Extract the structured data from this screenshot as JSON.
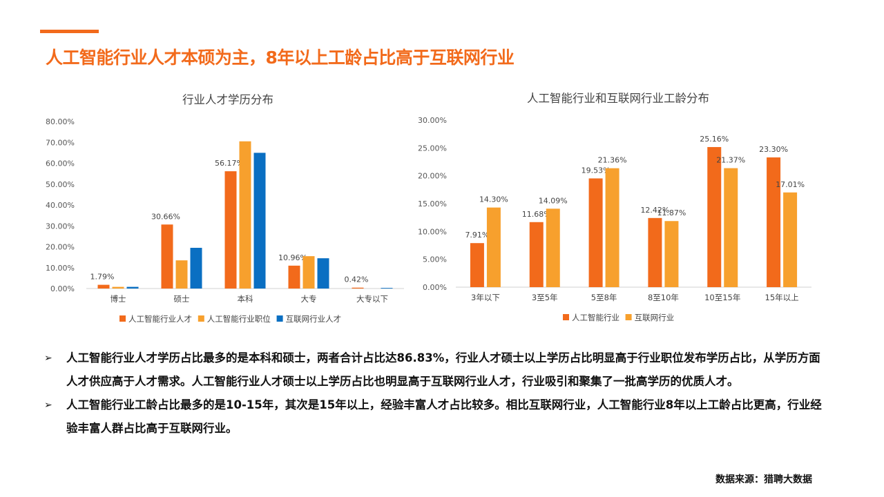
{
  "page": {
    "title": "人工智能行业人才本硕为主，8年以上工龄占比高于互联网行业",
    "source": "数据来源：猎聘大数据",
    "bullets": [
      "人工智能行业人才学历占比最多的是本科和硕士，两者合计占比达86.83%，行业人才硕士以上学历占比明显高于行业职位发布学历占比，从学历方面人才供应高于人才需求。人工智能行业人才硕士以上学历占比也明显高于互联网行业人才，行业吸引和聚集了一批高学历的优质人才。",
      "人工智能行业工龄占比最多的是10-15年，其次是15年以上，经验丰富人才占比较多。相比互联网行业，人工智能行业8年以上工龄占比更高，行业经验丰富人群占比高于互联网行业。"
    ],
    "bullet_marker": "➢"
  },
  "colors": {
    "accent": "#F26A1B",
    "series_orange": "#F26A1B",
    "series_light_orange": "#F7A02D",
    "series_blue": "#0A6FC2"
  },
  "chart_data": [
    {
      "type": "bar",
      "title": "行业人才学历分布",
      "categories": [
        "博士",
        "硕士",
        "本科",
        "大专",
        "大专以下"
      ],
      "ylim": [
        0,
        80
      ],
      "yticks": [
        "0.00%",
        "10.00%",
        "20.00%",
        "30.00%",
        "40.00%",
        "50.00%",
        "60.00%",
        "70.00%",
        "80.00%"
      ],
      "series": [
        {
          "name": "人工智能行业人才",
          "color": "#F26A1B",
          "values": [
            1.79,
            30.66,
            56.17,
            10.96,
            0.42
          ],
          "labels": [
            "1.79%",
            "30.66%",
            "56.17%",
            "10.96%",
            "0.42%"
          ]
        },
        {
          "name": "人工智能行业职位",
          "color": "#F7A02D",
          "values": [
            0.8,
            13.5,
            70.5,
            15.5,
            0.0
          ],
          "labels": [
            "",
            "",
            "",
            "",
            ""
          ]
        },
        {
          "name": "互联网行业人才",
          "color": "#0A6FC2",
          "values": [
            0.8,
            19.5,
            65.0,
            14.5,
            0.3
          ],
          "labels": [
            "",
            "",
            "",
            "",
            ""
          ]
        }
      ],
      "legend": "bottom"
    },
    {
      "type": "bar",
      "title": "人工智能行业和互联网行业工龄分布",
      "categories": [
        "3年以下",
        "3至5年",
        "5至8年",
        "8至10年",
        "10至15年",
        "15年以上"
      ],
      "ylim": [
        0,
        30
      ],
      "yticks": [
        "0.00%",
        "5.00%",
        "10.00%",
        "15.00%",
        "20.00%",
        "25.00%",
        "30.00%"
      ],
      "series": [
        {
          "name": "人工智能行业",
          "color": "#F26A1B",
          "values": [
            7.91,
            11.68,
            19.53,
            12.42,
            25.16,
            23.3
          ],
          "labels": [
            "7.91%",
            "11.68%",
            "19.53%",
            "12.42%",
            "25.16%",
            "23.30%"
          ]
        },
        {
          "name": "互联网行业",
          "color": "#F7A02D",
          "values": [
            14.3,
            14.09,
            21.36,
            11.87,
            21.37,
            17.01
          ],
          "labels": [
            "14.30%",
            "14.09%",
            "21.36%",
            "11.87%",
            "21.37%",
            "17.01%"
          ]
        }
      ],
      "legend": "bottom"
    }
  ]
}
